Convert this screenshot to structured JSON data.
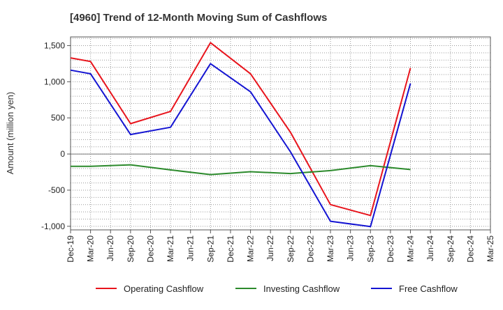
{
  "chart_data": {
    "type": "line",
    "title": "[4960]  Trend of 12-Month Moving Sum of Cashflows",
    "xlabel": "",
    "ylabel": "Amount (million yen)",
    "ylim": [
      -1050,
      1620
    ],
    "yticks": [
      -1000,
      -500,
      0,
      500,
      1000,
      1500
    ],
    "ytick_labels": [
      "-1,000",
      "-500",
      "0",
      "500",
      "1,000",
      "1,500"
    ],
    "categories": [
      "Dec-19",
      "Mar-20",
      "Jun-20",
      "Sep-20",
      "Dec-20",
      "Mar-21",
      "Jun-21",
      "Sep-21",
      "Dec-21",
      "Mar-22",
      "Jun-22",
      "Sep-22",
      "Dec-22",
      "Mar-23",
      "Jun-23",
      "Sep-23",
      "Dec-23",
      "Mar-24",
      "Jun-24",
      "Sep-24",
      "Dec-24",
      "Mar-25"
    ],
    "grid": true,
    "legend_position": "bottom",
    "series": [
      {
        "name": "Operating Cashflow",
        "color": "#e8141c",
        "values": [
          1330,
          1280,
          null,
          420,
          null,
          590,
          null,
          1540,
          null,
          1110,
          null,
          300,
          null,
          -700,
          null,
          -850,
          null,
          1190,
          null,
          null,
          null,
          null
        ]
      },
      {
        "name": "Investing Cashflow",
        "color": "#2c8a2c",
        "values": [
          -170,
          -170,
          null,
          -150,
          null,
          -220,
          null,
          -285,
          null,
          -245,
          null,
          -270,
          null,
          -230,
          null,
          -160,
          null,
          -215,
          null,
          null,
          null,
          null
        ]
      },
      {
        "name": "Free Cashflow",
        "color": "#1414d2",
        "values": [
          1160,
          1110,
          null,
          270,
          null,
          370,
          null,
          1250,
          null,
          860,
          null,
          30,
          null,
          -930,
          null,
          -1005,
          null,
          975,
          null,
          null,
          null,
          null
        ]
      }
    ]
  }
}
